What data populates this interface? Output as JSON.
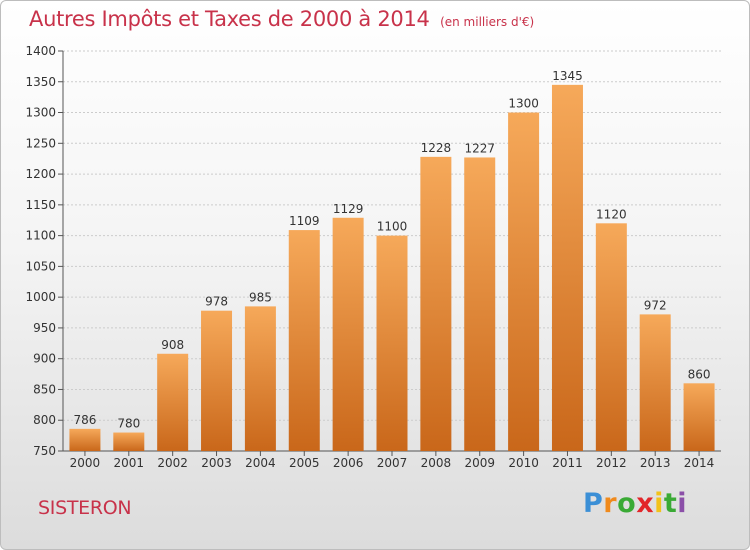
{
  "header": {
    "title": "Autres Impôts et Taxes de 2000 à 2014",
    "unit": "(en milliers d'€)"
  },
  "city": "SISTERON",
  "brand": {
    "letters": [
      "P",
      "r",
      "o",
      "x",
      "i",
      "t",
      "i"
    ],
    "colors": [
      "#3b8fd6",
      "#f08a1c",
      "#3aaa35",
      "#e2262a",
      "#f2c21b",
      "#3aaa35",
      "#8b4fa8"
    ]
  },
  "colors": {
    "bar_top": "#f6a95a",
    "bar_bottom": "#c9671a",
    "axis_text": "#333333",
    "grid": "#cccccc",
    "accent": "#c8324a"
  },
  "chart_data": {
    "type": "bar",
    "categories": [
      "2000",
      "2001",
      "2002",
      "2003",
      "2004",
      "2005",
      "2006",
      "2007",
      "2008",
      "2009",
      "2010",
      "2011",
      "2012",
      "2013",
      "2014"
    ],
    "values": [
      786,
      780,
      908,
      978,
      985,
      1109,
      1129,
      1100,
      1228,
      1227,
      1300,
      1345,
      1120,
      972,
      860
    ],
    "ylim": [
      750,
      1400
    ],
    "yticks": [
      750,
      800,
      850,
      900,
      950,
      1000,
      1050,
      1100,
      1150,
      1200,
      1250,
      1300,
      1350,
      1400
    ],
    "grid": true,
    "data_labels": true
  }
}
